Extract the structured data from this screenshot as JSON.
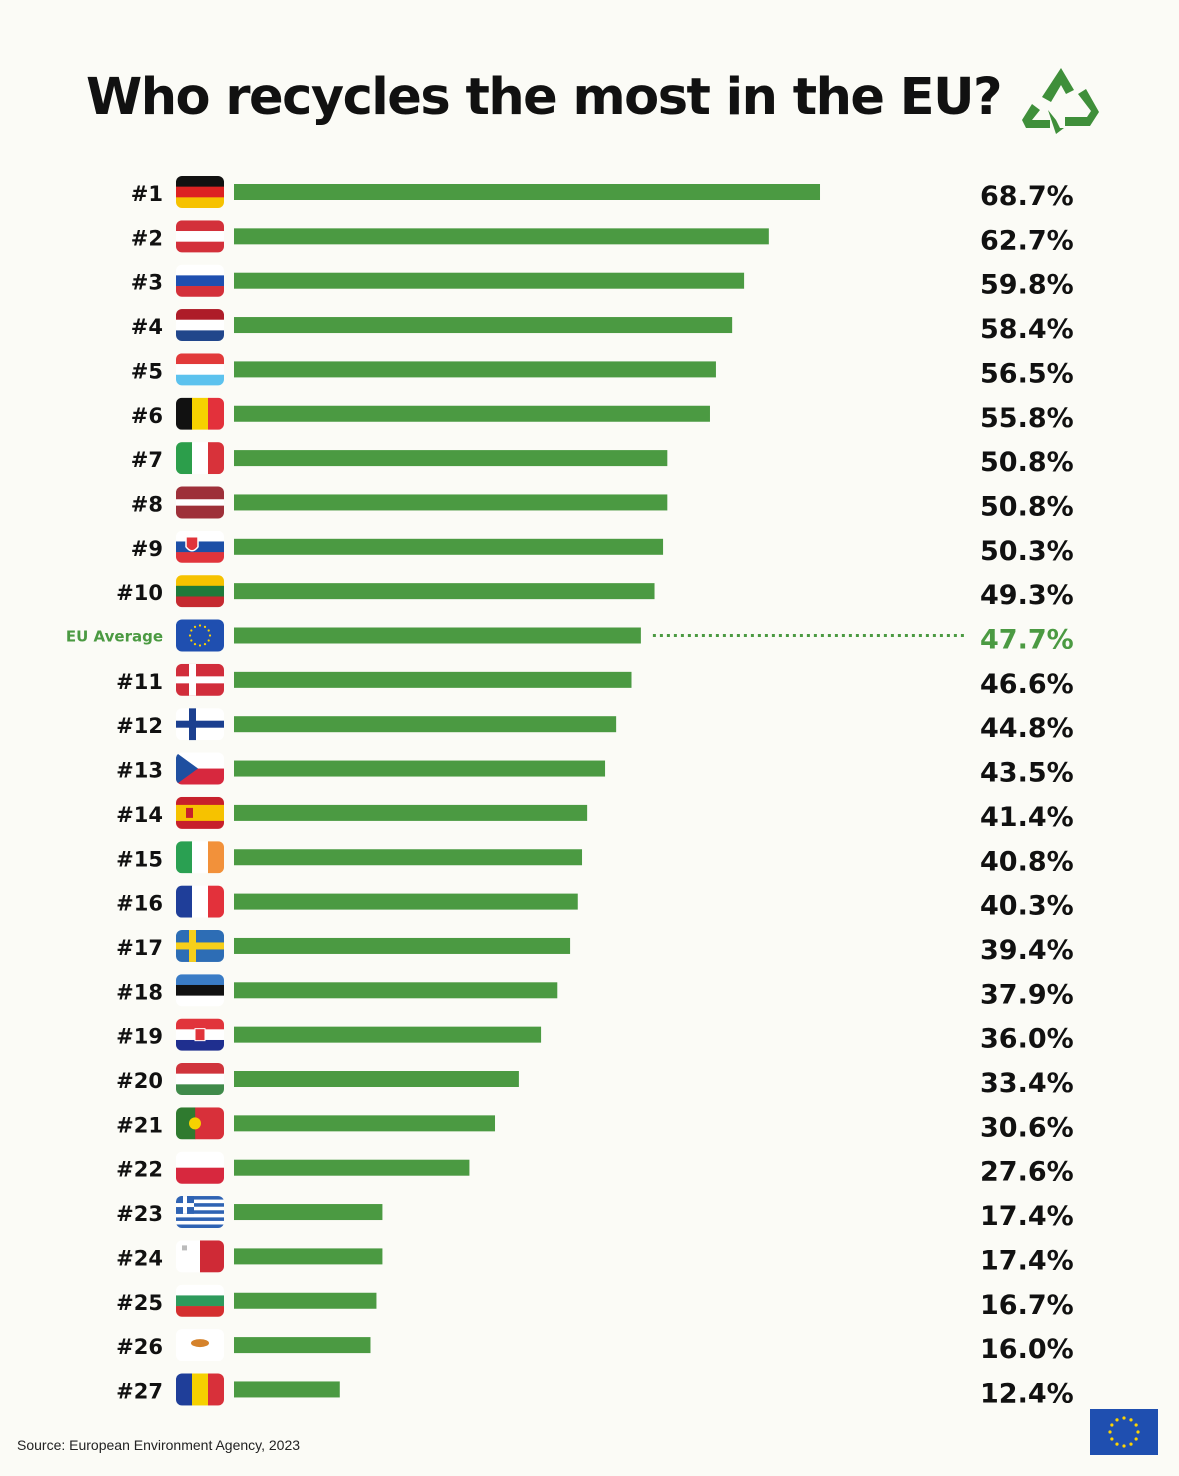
{
  "title": "Who recycles the most in the EU?",
  "source": "Source: European Environment Agency, 2023",
  "colors": {
    "bar": "#4b9a42",
    "highlight": "#4b9a42",
    "text": "#111111",
    "background": "#fbfbf6"
  },
  "icons": {
    "title_icon": "recycle-icon",
    "corner_logo": "eu-flag-logo"
  },
  "chart_data": {
    "type": "bar",
    "orientation": "horizontal",
    "title": "Who recycles the most in the EU?",
    "value_unit": "%",
    "xlim": [
      0,
      100
    ],
    "grid": false,
    "rows": [
      {
        "rank": "#1",
        "flag": "germany-flag",
        "value": 68.7,
        "label": "68.7%"
      },
      {
        "rank": "#2",
        "flag": "austria-flag",
        "value": 62.7,
        "label": "62.7%"
      },
      {
        "rank": "#3",
        "flag": "slovenia-flag",
        "value": 59.8,
        "label": "59.8%"
      },
      {
        "rank": "#4",
        "flag": "netherlands-flag",
        "value": 58.4,
        "label": "58.4%"
      },
      {
        "rank": "#5",
        "flag": "luxembourg-flag",
        "value": 56.5,
        "label": "56.5%"
      },
      {
        "rank": "#6",
        "flag": "belgium-flag",
        "value": 55.8,
        "label": "55.8%"
      },
      {
        "rank": "#7",
        "flag": "italy-flag",
        "value": 50.8,
        "label": "50.8%"
      },
      {
        "rank": "#8",
        "flag": "latvia-flag",
        "value": 50.8,
        "label": "50.8%"
      },
      {
        "rank": "#9",
        "flag": "slovakia-flag",
        "value": 50.3,
        "label": "50.3%"
      },
      {
        "rank": "#10",
        "flag": "lithuania-flag",
        "value": 49.3,
        "label": "49.3%"
      },
      {
        "rank": "EU Average",
        "flag": "eu-flag",
        "value": 47.7,
        "label": "47.7%",
        "highlight": true
      },
      {
        "rank": "#11",
        "flag": "denmark-flag",
        "value": 46.6,
        "label": "46.6%"
      },
      {
        "rank": "#12",
        "flag": "finland-flag",
        "value": 44.8,
        "label": "44.8%"
      },
      {
        "rank": "#13",
        "flag": "czechia-flag",
        "value": 43.5,
        "label": "43.5%"
      },
      {
        "rank": "#14",
        "flag": "spain-flag",
        "value": 41.4,
        "label": "41.4%"
      },
      {
        "rank": "#15",
        "flag": "ireland-flag",
        "value": 40.8,
        "label": "40.8%"
      },
      {
        "rank": "#16",
        "flag": "france-flag",
        "value": 40.3,
        "label": "40.3%"
      },
      {
        "rank": "#17",
        "flag": "sweden-flag",
        "value": 39.4,
        "label": "39.4%"
      },
      {
        "rank": "#18",
        "flag": "estonia-flag",
        "value": 37.9,
        "label": "37.9%"
      },
      {
        "rank": "#19",
        "flag": "croatia-flag",
        "value": 36.0,
        "label": "36.0%"
      },
      {
        "rank": "#20",
        "flag": "hungary-flag",
        "value": 33.4,
        "label": "33.4%"
      },
      {
        "rank": "#21",
        "flag": "portugal-flag",
        "value": 30.6,
        "label": "30.6%"
      },
      {
        "rank": "#22",
        "flag": "poland-flag",
        "value": 27.6,
        "label": "27.6%"
      },
      {
        "rank": "#23",
        "flag": "greece-flag",
        "value": 17.4,
        "label": "17.4%"
      },
      {
        "rank": "#24",
        "flag": "malta-flag",
        "value": 17.4,
        "label": "17.4%"
      },
      {
        "rank": "#25",
        "flag": "bulgaria-flag",
        "value": 16.7,
        "label": "16.7%"
      },
      {
        "rank": "#26",
        "flag": "cyprus-flag",
        "value": 16.0,
        "label": "16.0%"
      },
      {
        "rank": "#27",
        "flag": "romania-flag",
        "value": 12.4,
        "label": "12.4%"
      }
    ]
  }
}
